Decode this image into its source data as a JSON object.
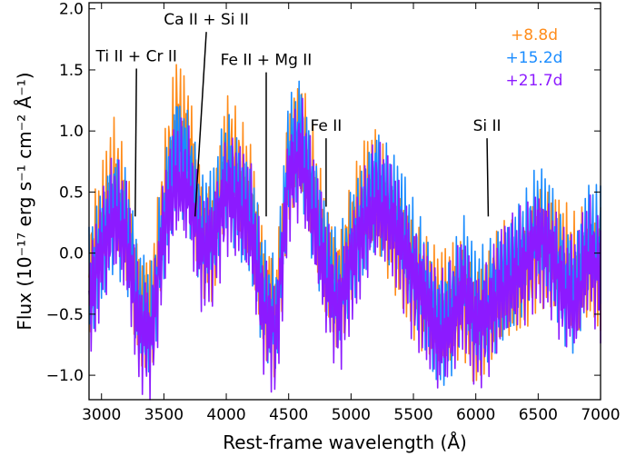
{
  "chart_data": {
    "type": "line",
    "xlabel": "Rest-frame wavelength (Å)",
    "ylabel": "Flux (10⁻¹⁷ erg s⁻¹ cm⁻² Å⁻¹)",
    "xlim": [
      2900,
      7000
    ],
    "ylim": [
      -1.2,
      2.05
    ],
    "xticks": [
      3000,
      3500,
      4000,
      4500,
      5000,
      5500,
      6000,
      6500,
      7000
    ],
    "yticks": [
      -1.0,
      -0.5,
      0.0,
      0.5,
      1.0,
      1.5,
      2.0
    ],
    "xtick_labels": [
      "3000",
      "3500",
      "4000",
      "4500",
      "5000",
      "5500",
      "6000",
      "6500",
      "7000"
    ],
    "ytick_labels": [
      "−1.0",
      "−0.5",
      "0.0",
      "0.5",
      "1.0",
      "1.5",
      "2.0"
    ],
    "legend_position": "top-right",
    "series": [
      {
        "name": "+8.8d",
        "color": "#ff8c1a",
        "x": [
          2900,
          3000,
          3100,
          3200,
          3300,
          3400,
          3500,
          3600,
          3700,
          3800,
          3900,
          4000,
          4100,
          4200,
          4300,
          4400,
          4500,
          4600,
          4700,
          4800,
          4900,
          5000,
          5100,
          5200,
          5300,
          5400,
          5500,
          5600,
          5700,
          5800,
          5900,
          6000,
          6100,
          6200,
          6300,
          6400,
          6500,
          6600,
          6700,
          6800,
          6900,
          7000
        ],
        "y": [
          -0.2,
          0.2,
          0.6,
          0.3,
          -0.4,
          -0.5,
          0.4,
          1.1,
          0.9,
          0.2,
          0.1,
          0.8,
          0.6,
          0.4,
          -0.3,
          -0.5,
          0.7,
          0.9,
          0.5,
          0.0,
          -0.3,
          0.1,
          0.4,
          0.5,
          0.3,
          0.1,
          -0.2,
          -0.4,
          -0.5,
          -0.4,
          -0.3,
          -0.6,
          -0.5,
          -0.3,
          -0.2,
          -0.1,
          0.1,
          0.0,
          -0.1,
          -0.2,
          0.0,
          -0.1
        ]
      },
      {
        "name": "+15.2d",
        "color": "#1a8cff",
        "x": [
          2900,
          3000,
          3100,
          3200,
          3300,
          3400,
          3500,
          3600,
          3700,
          3800,
          3900,
          4000,
          4100,
          4200,
          4300,
          4400,
          4500,
          4600,
          4700,
          4800,
          4900,
          5000,
          5100,
          5200,
          5300,
          5400,
          5500,
          5600,
          5700,
          5800,
          5900,
          6000,
          6100,
          6200,
          6300,
          6400,
          6500,
          6600,
          6700,
          6800,
          6900,
          7000
        ],
        "y": [
          -0.3,
          0.1,
          0.4,
          0.2,
          -0.5,
          -0.6,
          0.3,
          0.9,
          0.7,
          0.1,
          0.2,
          0.7,
          0.5,
          0.3,
          -0.4,
          -0.6,
          0.8,
          1.0,
          0.4,
          -0.1,
          -0.4,
          0.0,
          0.3,
          0.6,
          0.4,
          0.2,
          -0.1,
          -0.3,
          -0.6,
          -0.5,
          -0.2,
          -0.5,
          -0.4,
          -0.2,
          -0.1,
          0.0,
          0.2,
          0.1,
          -0.2,
          -0.3,
          0.1,
          0.0
        ]
      },
      {
        "name": "+21.7d",
        "color": "#8c1aff",
        "x": [
          2900,
          3000,
          3100,
          3200,
          3300,
          3400,
          3500,
          3600,
          3700,
          3800,
          3900,
          4000,
          4100,
          4200,
          4300,
          4400,
          4500,
          4600,
          4700,
          4800,
          4900,
          5000,
          5100,
          5200,
          5300,
          5400,
          5500,
          5600,
          5700,
          5800,
          5900,
          6000,
          6100,
          6200,
          6300,
          6400,
          6500,
          6600,
          6700,
          6800,
          6900,
          7000
        ],
        "y": [
          -0.4,
          0.0,
          0.3,
          0.1,
          -0.6,
          -0.7,
          0.2,
          0.6,
          0.5,
          0.0,
          0.1,
          0.5,
          0.4,
          0.2,
          -0.5,
          -0.7,
          0.6,
          0.8,
          0.3,
          -0.2,
          -0.5,
          -0.1,
          0.2,
          0.4,
          0.3,
          0.1,
          -0.2,
          -0.4,
          -0.7,
          -0.6,
          -0.3,
          -0.6,
          -0.5,
          -0.3,
          -0.2,
          -0.1,
          0.1,
          0.0,
          -0.3,
          -0.4,
          0.0,
          -0.2
        ]
      }
    ],
    "annotations": [
      {
        "text": "Ti II + Cr II",
        "x": 3270,
        "y": 0.3,
        "label_x": 3280,
        "label_y": 1.57
      },
      {
        "text": "Ca II + Si II",
        "x": 3750,
        "y": 0.3,
        "label_x": 3840,
        "label_y": 1.87
      },
      {
        "text": "Fe II + Mg II",
        "x": 4320,
        "y": 0.3,
        "label_x": 4320,
        "label_y": 1.54
      },
      {
        "text": "Fe II",
        "x": 4800,
        "y": 0.38,
        "label_x": 4800,
        "label_y": 1.0
      },
      {
        "text": "Si II",
        "x": 6100,
        "y": 0.3,
        "label_x": 6090,
        "label_y": 1.0
      }
    ]
  }
}
